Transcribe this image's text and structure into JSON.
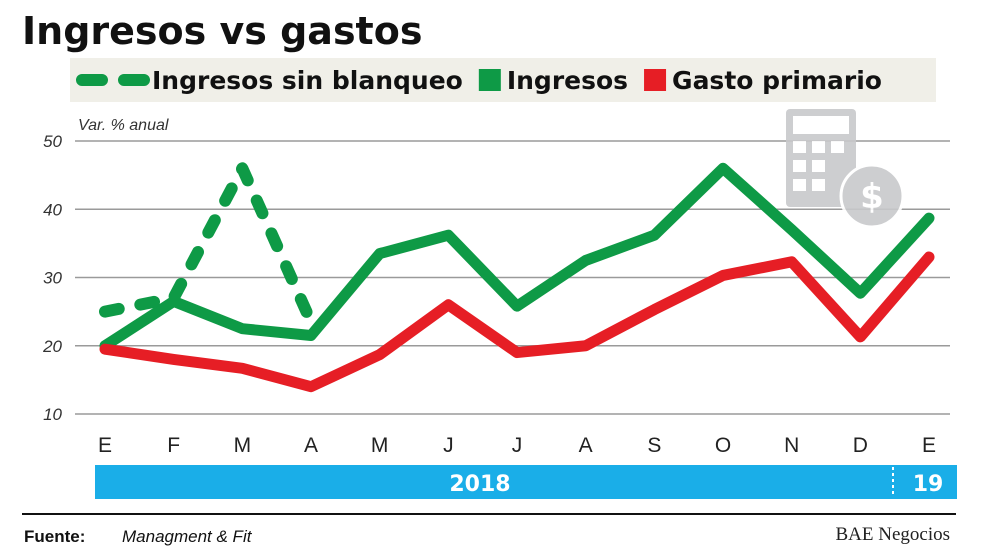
{
  "chart_data": {
    "type": "line",
    "title": "Ingresos vs gastos",
    "ylabel": "Var. % anual",
    "ylim": [
      10,
      50
    ],
    "yticks": [
      10,
      20,
      30,
      40,
      50
    ],
    "grid": true,
    "legend_placement": "top",
    "categories": [
      "E",
      "F",
      "M",
      "A",
      "M",
      "J",
      "J",
      "A",
      "S",
      "O",
      "N",
      "D",
      "E"
    ],
    "year_labels": [
      "2018",
      "19"
    ],
    "series": [
      {
        "name": "Ingresos sin blanqueo",
        "style": "dashed",
        "color": "#0e9a46",
        "values": [
          25,
          27,
          46,
          23.5,
          null,
          null,
          null,
          null,
          null,
          null,
          null,
          null,
          null
        ]
      },
      {
        "name": "Ingresos",
        "style": "solid",
        "color": "#0e9a46",
        "values": [
          20,
          26.5,
          22.5,
          21.5,
          33.5,
          36.2,
          25.8,
          32.5,
          36.2,
          46,
          37,
          27.7,
          38.7
        ]
      },
      {
        "name": "Gasto primario",
        "style": "solid",
        "color": "#e61e25",
        "values": [
          19.5,
          18,
          16.7,
          14,
          18.7,
          26,
          19,
          20,
          25.3,
          30.3,
          32.3,
          21.3,
          33
        ]
      }
    ]
  },
  "source_label": "Fuente:",
  "source_value": "Managment & Fit",
  "brand": "BAE Negocios",
  "colors": {
    "year_bar": "#1aaee8",
    "legend_bg": "#f0efe8",
    "grid": "#9a9a9a",
    "icon": "#c8c9cb"
  },
  "icon": "calculator-dollar-icon"
}
